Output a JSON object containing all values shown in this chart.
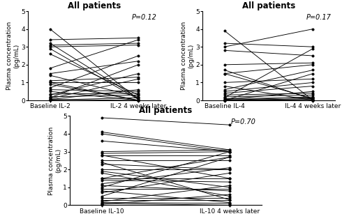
{
  "title": "All patients",
  "ylabel": "Plasma concentration\n(pg/mL)",
  "ylim": [
    0,
    5
  ],
  "yticks": [
    0,
    1,
    2,
    3,
    4,
    5
  ],
  "panels": [
    {
      "pvalue": "P=0.12",
      "xlabel_left": "Baseline IL-2",
      "xlabel_right": "IL-2 4 weeks later",
      "baseline": [
        4.0,
        3.4,
        3.2,
        3.1,
        3.0,
        2.9,
        2.6,
        1.8,
        1.5,
        1.4,
        1.1,
        1.0,
        1.0,
        0.9,
        0.7,
        0.6,
        0.5,
        0.35,
        0.3,
        0.2,
        0.15,
        0.1,
        0.05,
        0.05,
        0.02,
        0.0
      ],
      "followup": [
        0.05,
        3.5,
        0.1,
        3.2,
        3.1,
        0.05,
        0.3,
        3.4,
        2.2,
        0.2,
        1.3,
        0.0,
        1.0,
        0.0,
        2.5,
        0.5,
        0.0,
        0.4,
        1.5,
        0.3,
        2.0,
        1.2,
        0.0,
        0.6,
        0.15,
        0.0
      ]
    },
    {
      "pvalue": "P=0.17",
      "xlabel_left": "Baseline IL-4",
      "xlabel_right": "IL-4 4 weeks later",
      "baseline": [
        3.9,
        3.2,
        3.0,
        2.8,
        2.0,
        1.7,
        1.5,
        1.5,
        1.0,
        0.8,
        0.6,
        0.5,
        0.4,
        0.3,
        0.2,
        0.15,
        0.1,
        0.05,
        0.05,
        0.0,
        0.0,
        0.0,
        0.0,
        0.0
      ],
      "followup": [
        0.0,
        3.0,
        4.0,
        2.5,
        2.1,
        0.05,
        2.0,
        0.1,
        1.2,
        0.0,
        1.7,
        1.0,
        0.8,
        0.4,
        0.3,
        2.9,
        0.15,
        0.0,
        0.5,
        0.2,
        0.1,
        0.05,
        1.5,
        0.0
      ]
    },
    {
      "pvalue": "P=0.70",
      "xlabel_left": "Baseline IL-10",
      "xlabel_right": "IL-10 4 weeks later",
      "baseline": [
        4.9,
        4.1,
        4.0,
        3.6,
        3.0,
        2.9,
        2.8,
        2.8,
        2.5,
        2.4,
        2.3,
        2.0,
        1.9,
        1.8,
        1.5,
        1.5,
        1.4,
        1.2,
        1.1,
        1.0,
        0.9,
        0.8,
        0.7,
        0.5,
        0.4,
        0.3,
        0.2,
        0.15,
        0.1,
        0.05,
        0.02,
        0.0
      ],
      "followup": [
        4.5,
        3.1,
        3.0,
        3.0,
        3.1,
        3.0,
        2.8,
        1.5,
        2.5,
        0.3,
        2.0,
        2.0,
        1.0,
        0.5,
        1.5,
        2.7,
        1.3,
        2.1,
        0.8,
        3.0,
        0.9,
        0.15,
        1.8,
        2.7,
        0.4,
        0.3,
        1.1,
        0.1,
        0.0,
        0.6,
        0.02,
        0.0
      ]
    }
  ],
  "line_color": "#000000",
  "marker_color": "#000000",
  "marker_size": 2.5,
  "line_width": 0.65,
  "title_fontsize": 8.5,
  "label_fontsize": 6.5,
  "tick_fontsize": 6.5,
  "pvalue_fontsize": 7,
  "background_color": "#ffffff"
}
